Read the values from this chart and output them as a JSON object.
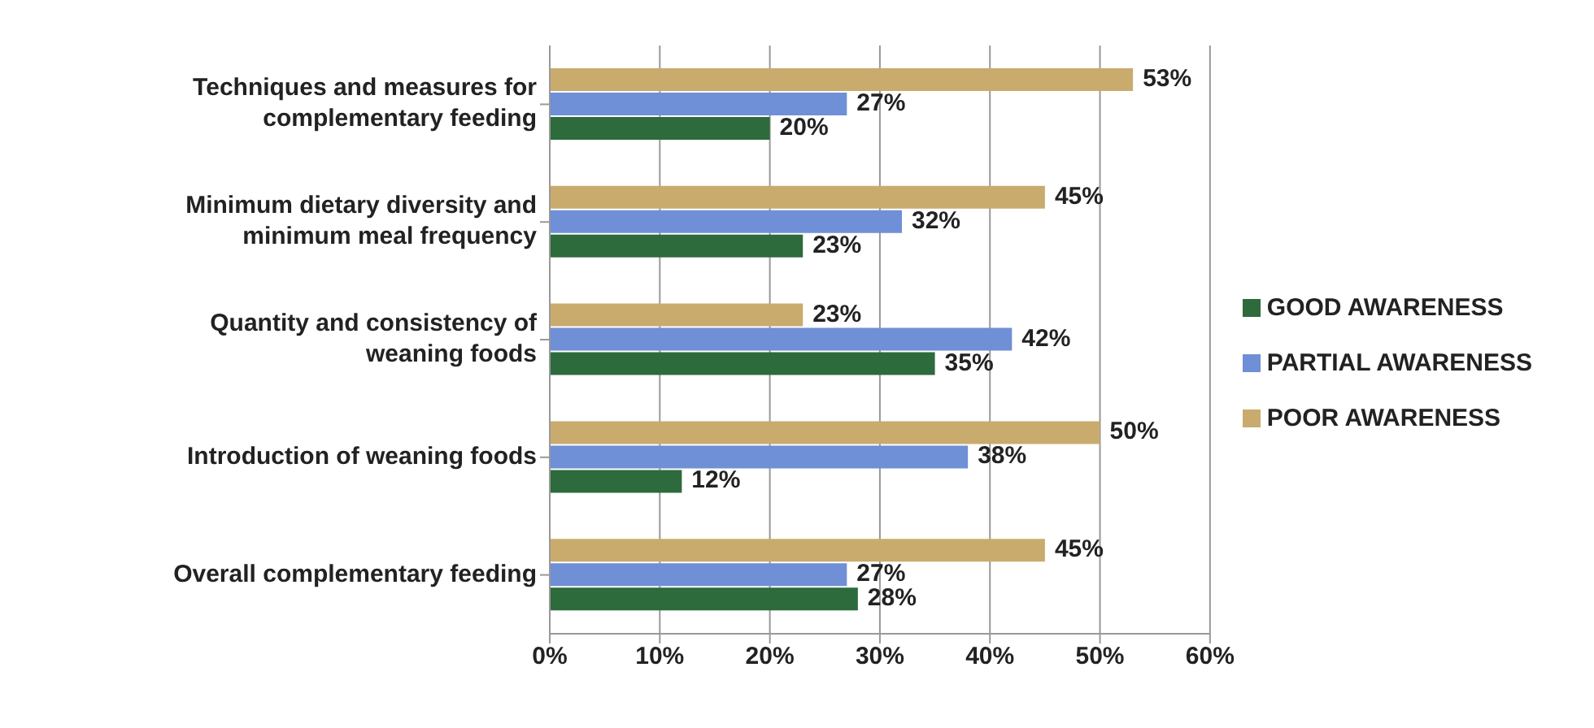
{
  "chart_data": {
    "type": "bar",
    "orientation": "horizontal",
    "categories": [
      "Techniques  and measures for complementary feeding",
      "Minimum dietary diversity and minimum meal frequency",
      "Quantity and consistency of weaning foods",
      "Introduction of weaning foods",
      "Overall complementary feeding"
    ],
    "series": [
      {
        "name": "POOR AWARENESS",
        "color": "#c9ab6e",
        "values": [
          53,
          45,
          23,
          50,
          45
        ],
        "value_labels": [
          "53%",
          "45%",
          "23%",
          "50%",
          "45%"
        ]
      },
      {
        "name": "PARTIAL AWARENESS",
        "color": "#6f8fd6",
        "values": [
          27,
          32,
          42,
          38,
          27
        ],
        "value_labels": [
          "27%",
          "32%",
          "42%",
          "38%",
          "27%"
        ]
      },
      {
        "name": "GOOD AWARENESS",
        "color": "#2d6a3c",
        "values": [
          20,
          23,
          35,
          12,
          28
        ],
        "value_labels": [
          "20%",
          "23%",
          "35%",
          "12%",
          "28%"
        ]
      }
    ],
    "xlim": [
      0,
      60
    ],
    "xticks": [
      {
        "value": 0,
        "label": "0%"
      },
      {
        "value": 10,
        "label": "10%"
      },
      {
        "value": 20,
        "label": "20%"
      },
      {
        "value": 30,
        "label": "30%"
      },
      {
        "value": 40,
        "label": "40%"
      },
      {
        "value": 50,
        "label": "50%"
      },
      {
        "value": 60,
        "label": "60%"
      }
    ],
    "grid": "x",
    "legend": "right"
  }
}
